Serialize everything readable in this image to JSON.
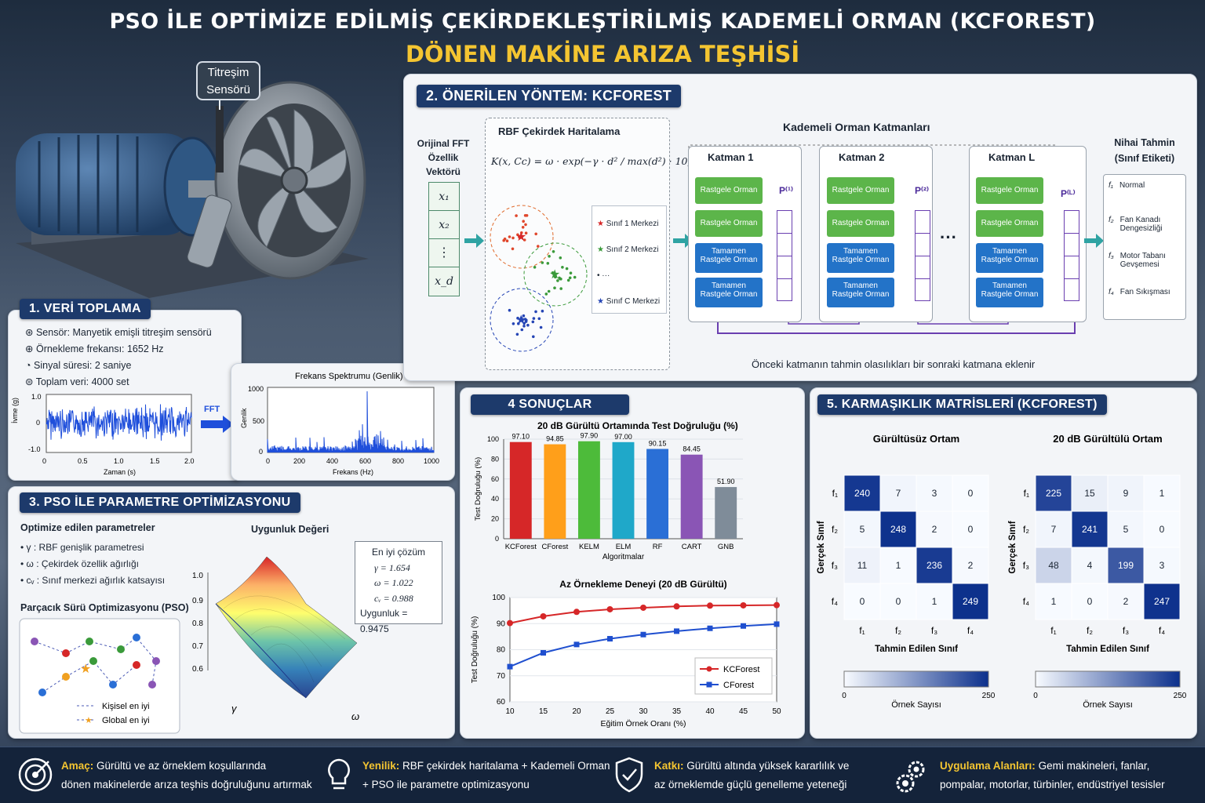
{
  "title_line1": "PSO İLE OPTİMİZE EDİLMİŞ ÇEKİRDEKLEŞTİRİLMİŞ KADEMELİ ORMAN (KCFOREST)",
  "title_line2": "DÖNEN MAKİNE ARIZA TEŞHİSİ",
  "sensor_callout": [
    "Titreşim",
    "Sensörü"
  ],
  "s1": {
    "header": "1. VERİ TOPLAMA",
    "items": [
      {
        "icon": "sensor-icon",
        "text": "Sensör: Manyetik emişli titreşim sensörü"
      },
      {
        "icon": "frequency-icon",
        "text": "Örnekleme frekansı: 1652 Hz"
      },
      {
        "icon": "clock-icon",
        "text": "Sinyal süresi: 2 saniye"
      },
      {
        "icon": "database-icon",
        "text": "Toplam veri: 4000 set"
      }
    ],
    "time_plot": {
      "ylabel": "İvme (g)",
      "xlabel": "Zaman (s)",
      "yticks": [
        "1.0",
        "0",
        "-1.0"
      ],
      "xticks": [
        "0",
        "0.5",
        "1.0",
        "1.5",
        "2.0"
      ]
    },
    "fft_label": "FFT",
    "spectrum": {
      "title": "Frekans Spektrumu (Genlik)",
      "ylabel": "Genlik",
      "xlabel": "Frekans (Hz)",
      "yticks": [
        "1000",
        "500",
        "0"
      ],
      "xticks": [
        "0",
        "200",
        "400",
        "600",
        "800",
        "1000"
      ]
    }
  },
  "s2": {
    "header": "2. ÖNERİLEN YÖNTEM: KCFOREST",
    "input_title": [
      "Orijinal FFT",
      "Özellik Vektörü"
    ],
    "input_cells": [
      "x₁",
      "x₂",
      "⋮",
      "x_d"
    ],
    "rbf_title": "RBF Çekirdek Haritalama",
    "formula": "K(x, Cc) = ω · exp(−γ · d² / max(d²) · 10)",
    "legend": [
      "Sınıf 1 Merkezi",
      "Sınıf 2 Merkezi",
      "···",
      "Sınıf C Merkezi"
    ],
    "cascade_title": "Kademeli Orman Katmanları",
    "layers": [
      {
        "name": "Katman 1",
        "p": "P⁽¹⁾"
      },
      {
        "name": "Katman 2",
        "p": "P⁽²⁾"
      },
      {
        "name": "Katman L",
        "p": "P⁽ᴸ⁾"
      }
    ],
    "forests": [
      "Rastgele Orman",
      "Rastgele Orman",
      "Tamamen Rastgele Orman",
      "Tamamen Rastgele Orman"
    ],
    "dots": "···",
    "output_title": [
      "Nihai Tahmin",
      "(Sınıf Etiketi)"
    ],
    "outputs": [
      {
        "f": "f₁",
        "label": "Normal"
      },
      {
        "f": "f₂",
        "label": "Fan Kanadı Dengesizliği"
      },
      {
        "f": "f₃",
        "label": "Motor Tabanı Gevşemesi"
      },
      {
        "f": "f₄",
        "label": "Fan Sıkışması"
      }
    ],
    "caption": "Önceki katmanın tahmin olasılıkları bir sonraki katmana eklenir"
  },
  "s3": {
    "header": "3. PSO İLE PARAMETRE OPTİMİZASYONU",
    "param_title": "Optimize edilen parametreler",
    "params": [
      "γ : RBF genişlik parametresi",
      "ω : Çekirdek özellik ağırlığı",
      "cᵥ : Sınıf merkezi ağırlık katsayısı"
    ],
    "pso_title": "Parçacık Sürü Optimizasyonu (PSO)",
    "pso_legend": [
      "Kişisel en iyi",
      "Global en iyi"
    ],
    "surface_title": "Uygunluk Değeri",
    "surface_zticks": [
      "1.0",
      "0.9",
      "0.8",
      "0.7",
      "0.6"
    ],
    "gamma_label": "γ",
    "omega_label": "ω",
    "best_title": "En iyi çözüm",
    "best": [
      "γ = 1.654",
      "ω = 1.022",
      "cᵥ = 0.988",
      "Uygunluk = 0.9475"
    ]
  },
  "s4": {
    "header": "4 SONUÇLAR",
    "bar_title": "20 dB Gürültü Ortamında Test Doğruluğu (%)",
    "line_title": "Az Örnekleme Deneyi (20 dB Gürültü)"
  },
  "s5": {
    "header": "5. KARMAŞIKLIK MATRİSLERİ (KCFOREST)",
    "matrices": [
      {
        "title": "Gürültüsüz Ortam",
        "values": [
          [
            240,
            7,
            3,
            0
          ],
          [
            5,
            248,
            2,
            0
          ],
          [
            11,
            1,
            236,
            2
          ],
          [
            0,
            0,
            1,
            249
          ]
        ]
      },
      {
        "title": "20 dB Gürültülü Ortam",
        "values": [
          [
            225,
            15,
            9,
            1
          ],
          [
            7,
            241,
            5,
            0
          ],
          [
            48,
            4,
            199,
            3
          ],
          [
            1,
            0,
            2,
            247
          ]
        ]
      }
    ],
    "row_labels": [
      "f₁",
      "f₂",
      "f₃",
      "f₄"
    ],
    "col_labels": [
      "f₁",
      "f₂",
      "f₃",
      "f₄"
    ],
    "ylabel": "Gerçek Sınıf",
    "xlabel": "Tahmin Edilen Sınıf",
    "cbar_label": "Örnek Sayısı",
    "cbar_min": "0",
    "cbar_max": "250"
  },
  "bottom": [
    {
      "icon": "target-icon",
      "bold": "Amaç:",
      "text": "Gürültü ve az örneklem koşullarında",
      "text2": "dönen makinelerde arıza teşhis doğruluğunu artırmak"
    },
    {
      "icon": "lightbulb-icon",
      "bold": "Yenilik:",
      "text": "RBF çekirdek haritalama + Kademeli Orman",
      "text2": "+ PSO ile parametre optimizasyonu"
    },
    {
      "icon": "shield-check-icon",
      "bold": "Katkı:",
      "text": "Gürültü altında yüksek kararlılık ve",
      "text2": "az örneklemde güçlü genelleme yeteneği"
    },
    {
      "icon": "gears-icon",
      "bold": "Uygulama Alanları:",
      "text": "Gemi makineleri, fanlar,",
      "text2": "pompalar, motorlar, türbinler, endüstriyel tesisler"
    }
  ],
  "colors": {
    "bar": [
      "#d62728",
      "#ff9f1a",
      "#4dbb3a",
      "#1fa8c9",
      "#2a6fd6",
      "#8a55b5",
      "#7f8c99"
    ],
    "kcforest": "#d62728",
    "cforest": "#1f4fcf",
    "navy": "#1d3a6b",
    "gold": "#f4c531"
  },
  "chart_data": [
    {
      "type": "bar",
      "title": "20 dB Gürültü Ortamında Test Doğruluğu (%)",
      "categories": [
        "KCForest",
        "CForest",
        "KELM",
        "ELM",
        "RF",
        "CART",
        "GNB"
      ],
      "values": [
        97.1,
        94.85,
        97.9,
        97.0,
        90.15,
        84.45,
        51.9
      ],
      "value_labels": [
        "97.10",
        "94.85",
        "97.90",
        "97.00",
        "90.15",
        "84.45",
        "51.90"
      ],
      "xlabel": "Algoritmalar",
      "ylabel": "Test Doğruluğu (%)",
      "ylim": [
        0,
        100
      ],
      "yticks": [
        0,
        20,
        40,
        60,
        80,
        100
      ]
    },
    {
      "type": "line",
      "title": "Az Örnekleme Deneyi (20 dB Gürültü)",
      "x": [
        10,
        15,
        20,
        25,
        30,
        35,
        40,
        45,
        50
      ],
      "series": [
        {
          "name": "KCForest",
          "values": [
            90.2,
            92.8,
            94.5,
            95.5,
            96.1,
            96.6,
            96.9,
            97.0,
            97.1
          ]
        },
        {
          "name": "CForest",
          "values": [
            73.5,
            78.8,
            82.0,
            84.2,
            85.8,
            87.1,
            88.2,
            89.1,
            89.8
          ]
        }
      ],
      "xlabel": "Eğitim Örnek Oranı (%)",
      "ylabel": "Test Doğruluğu (%)",
      "ylim": [
        60,
        100
      ],
      "yticks": [
        60,
        70,
        80,
        90,
        100
      ],
      "legend": "bottom-right"
    }
  ]
}
